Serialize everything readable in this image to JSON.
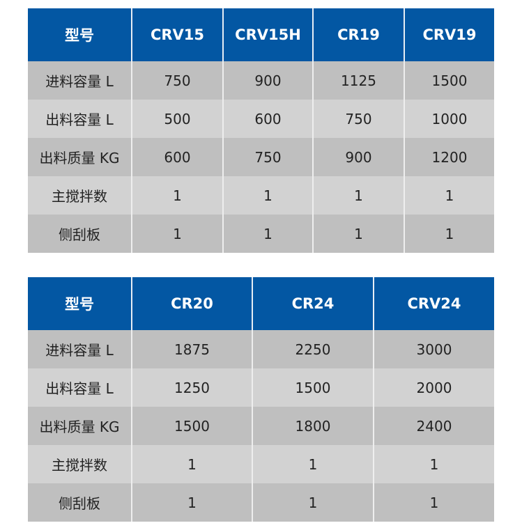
{
  "tables": [
    {
      "headers": [
        "型号",
        "CRV15",
        "CRV15H",
        "CR19",
        "CRV19"
      ],
      "rows": [
        [
          "进料容量 L",
          "750",
          "900",
          "1125",
          "1500"
        ],
        [
          "出料容量 L",
          "500",
          "600",
          "750",
          "1000"
        ],
        [
          "出料质量 KG",
          "600",
          "750",
          "900",
          "1200"
        ],
        [
          "主搅拌数",
          "1",
          "1",
          "1",
          "1"
        ],
        [
          "侧刮板",
          "1",
          "1",
          "1",
          "1"
        ]
      ]
    },
    {
      "headers": [
        "型号",
        "CR20",
        "CR24",
        "CRV24"
      ],
      "rows": [
        [
          "进料容量 L",
          "1875",
          "2250",
          "3000"
        ],
        [
          "出料容量 L",
          "1250",
          "1500",
          "2000"
        ],
        [
          "出料质量 KG",
          "1500",
          "1800",
          "2400"
        ],
        [
          "主搅拌数",
          "1",
          "1",
          "1"
        ],
        [
          "侧刮板",
          "1",
          "1",
          "1"
        ]
      ]
    }
  ],
  "colors": {
    "header": "#0357a3",
    "row_dark": "#bfbfbf",
    "row_light": "#d2d2d2"
  }
}
